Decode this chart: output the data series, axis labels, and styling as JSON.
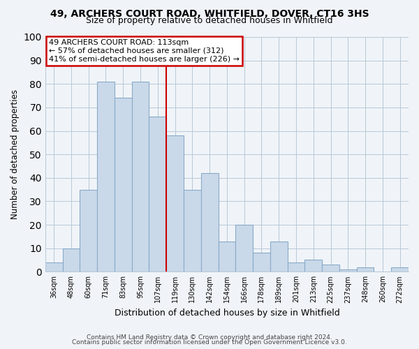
{
  "title": "49, ARCHERS COURT ROAD, WHITFIELD, DOVER, CT16 3HS",
  "subtitle": "Size of property relative to detached houses in Whitfield",
  "xlabel": "Distribution of detached houses by size in Whitfield",
  "ylabel": "Number of detached properties",
  "bin_labels": [
    "36sqm",
    "48sqm",
    "60sqm",
    "71sqm",
    "83sqm",
    "95sqm",
    "107sqm",
    "119sqm",
    "130sqm",
    "142sqm",
    "154sqm",
    "166sqm",
    "178sqm",
    "189sqm",
    "201sqm",
    "213sqm",
    "225sqm",
    "237sqm",
    "248sqm",
    "260sqm",
    "272sqm"
  ],
  "bar_heights": [
    4,
    10,
    35,
    81,
    74,
    81,
    66,
    58,
    35,
    42,
    13,
    20,
    8,
    13,
    4,
    5,
    3,
    1,
    2,
    0,
    2
  ],
  "bar_color": "#c9d9e9",
  "bar_edge_color": "#8aaac8",
  "red_line_index": 7,
  "ylim": [
    0,
    100
  ],
  "yticks": [
    0,
    10,
    20,
    30,
    40,
    50,
    60,
    70,
    80,
    90,
    100
  ],
  "annotation_line1": "49 ARCHERS COURT ROAD: 113sqm",
  "annotation_line2": "← 57% of detached houses are smaller (312)",
  "annotation_line3": "41% of semi-detached houses are larger (226) →",
  "annotation_box_color": "#ffffff",
  "annotation_box_edge": "#cc0000",
  "footnote1": "Contains HM Land Registry data © Crown copyright and database right 2024.",
  "footnote2": "Contains public sector information licensed under the Open Government Licence v3.0.",
  "bg_color": "#f0f4f8",
  "grid_color": "#b8c8d8"
}
